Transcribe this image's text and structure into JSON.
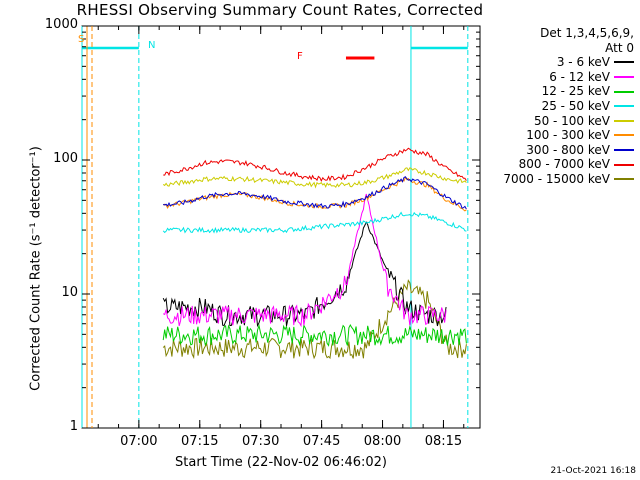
{
  "chart_data": {
    "type": "line",
    "title": "RHESSI Observing Summary Count Rates, Corrected",
    "xlabel": "Start Time (22-Nov-02 06:46:02)",
    "ylabel": "Corrected Count Rate (s⁻¹ detector⁻¹)",
    "yscale": "log",
    "ylim": [
      1,
      1000
    ],
    "xlim": [
      "06:46",
      "08:24"
    ],
    "x_ticks": [
      "07:00",
      "07:15",
      "07:30",
      "07:45",
      "08:00",
      "08:15"
    ],
    "y_ticks": [
      "1",
      "10",
      "100",
      "1000"
    ],
    "grid": false,
    "legend_placement": "right",
    "legend_header": [
      "Det 1,3,4,5,6,9,",
      "Att 0"
    ],
    "timestamp": "21-Oct-2021 16:18",
    "flags": {
      "saa_label": "S",
      "night_label": "N",
      "flare_label": "F",
      "night_color": "#00e5e5",
      "flare_color": "#ff0000",
      "saa_color": "#ff8c00"
    },
    "x_minutes": [
      0,
      7,
      10,
      15,
      20,
      25,
      30,
      35,
      40,
      45,
      50,
      55,
      60,
      65,
      70,
      75,
      80,
      85,
      90,
      95
    ],
    "series": [
      {
        "name": "3 - 6 keV",
        "color": "#000000",
        "values": [
          null,
          null,
          null,
          null,
          8,
          8,
          8,
          7,
          7,
          7,
          7,
          7,
          9,
          12,
          35,
          15,
          8,
          7,
          7,
          null
        ]
      },
      {
        "name": "6 - 12 keV",
        "color": "#ff00ff",
        "values": [
          null,
          null,
          null,
          null,
          7,
          7,
          7,
          7,
          7,
          7,
          7,
          7,
          9,
          12,
          55,
          12,
          7,
          7,
          7,
          null
        ]
      },
      {
        "name": "12 - 25 keV",
        "color": "#00cc00",
        "values": [
          null,
          null,
          null,
          null,
          5,
          5,
          5,
          5,
          5,
          5,
          5,
          5,
          5,
          5,
          5,
          5,
          5,
          5,
          5,
          5
        ]
      },
      {
        "name": "25 - 50 keV",
        "color": "#00e5e5",
        "values": [
          null,
          null,
          null,
          null,
          30,
          30,
          30,
          30,
          30,
          30,
          30,
          31,
          32,
          33,
          34,
          37,
          40,
          38,
          34,
          30
        ]
      },
      {
        "name": "50 - 100 keV",
        "color": "#cccc00",
        "values": [
          null,
          null,
          null,
          null,
          65,
          68,
          72,
          73,
          72,
          70,
          68,
          66,
          65,
          65,
          68,
          75,
          85,
          80,
          72,
          68
        ]
      },
      {
        "name": "100 - 300 keV",
        "color": "#ff8c00",
        "values": [
          null,
          null,
          null,
          null,
          45,
          48,
          52,
          55,
          55,
          52,
          48,
          46,
          45,
          46,
          52,
          62,
          72,
          65,
          50,
          42
        ]
      },
      {
        "name": "300 - 800 keV",
        "color": "#0000cc",
        "values": [
          null,
          null,
          null,
          null,
          46,
          48,
          53,
          56,
          56,
          53,
          49,
          47,
          45,
          47,
          53,
          63,
          73,
          66,
          52,
          43
        ]
      },
      {
        "name": "800 - 7000 keV",
        "color": "#ee0000",
        "values": [
          null,
          null,
          null,
          null,
          78,
          85,
          95,
          98,
          95,
          88,
          80,
          75,
          72,
          75,
          88,
          105,
          120,
          110,
          85,
          70
        ]
      },
      {
        "name": "7000 - 15000 keV",
        "color": "#808000",
        "values": [
          null,
          null,
          null,
          null,
          4,
          4,
          4,
          4,
          4,
          4,
          4,
          4,
          4,
          4,
          4,
          7,
          11,
          9,
          4,
          4
        ]
      }
    ],
    "night_markers": [
      "06:46",
      "07:00",
      "08:07",
      "08:21"
    ],
    "flare_interval": [
      "07:51",
      "07:58"
    ]
  }
}
